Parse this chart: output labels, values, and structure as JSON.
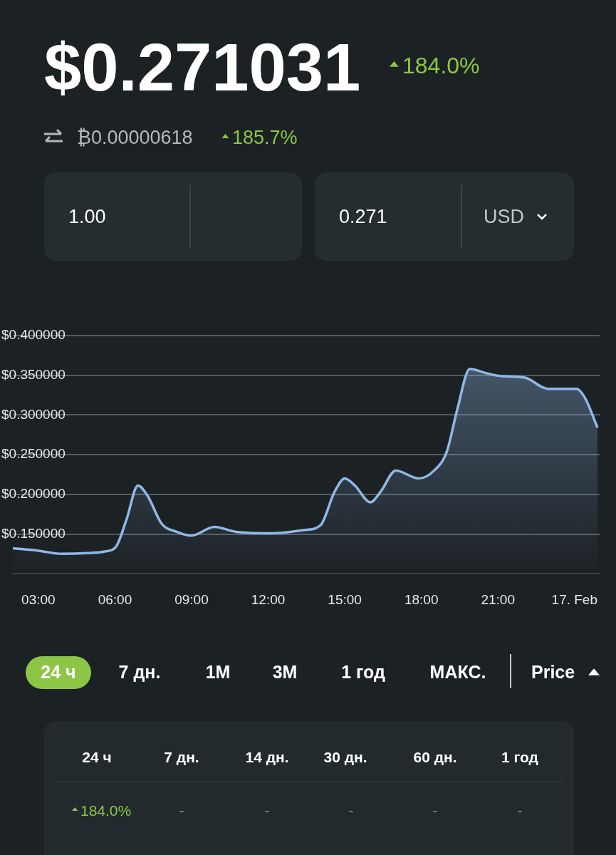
{
  "chart_data": {
    "type": "area",
    "title": "$0.271031",
    "x": [
      2.0,
      3.0,
      3.9,
      4.93,
      5.6,
      6.04,
      6.45,
      6.9,
      7.28,
      7.83,
      8.4,
      9.0,
      9.9,
      10.7,
      12.1,
      13.4,
      14.05,
      14.6,
      15.0,
      15.4,
      16.0,
      16.4,
      17.0,
      17.9,
      18.5,
      19.0,
      19.4,
      19.9,
      20.5,
      21.1,
      22.06,
      22.95,
      24.08,
      24.4,
      24.9
    ],
    "values": [
      0.132,
      0.129,
      0.125,
      0.126,
      0.128,
      0.134,
      0.168,
      0.211,
      0.198,
      0.163,
      0.153,
      0.148,
      0.159,
      0.153,
      0.151,
      0.155,
      0.161,
      0.203,
      0.22,
      0.211,
      0.19,
      0.203,
      0.23,
      0.22,
      0.23,
      0.254,
      0.306,
      0.358,
      0.353,
      0.349,
      0.347,
      0.333,
      0.333,
      0.322,
      0.284
    ],
    "color": "#8fb8e6",
    "xlim": [
      2,
      25
    ],
    "xticks": [
      {
        "value": 3,
        "label": "03:00"
      },
      {
        "value": 6,
        "label": "06:00"
      },
      {
        "value": 9,
        "label": "09:00"
      },
      {
        "value": 12,
        "label": "12:00"
      },
      {
        "value": 15,
        "label": "15:00"
      },
      {
        "value": 18,
        "label": "18:00"
      },
      {
        "value": 21,
        "label": "21:00"
      },
      {
        "value": 24,
        "label": "17. Feb"
      }
    ],
    "ylim": [
      0.1,
      0.4
    ],
    "yticks": [
      {
        "value": 0.15,
        "label": "$0.150000"
      },
      {
        "value": 0.2,
        "label": "$0.200000"
      },
      {
        "value": 0.25,
        "label": "$0.250000"
      },
      {
        "value": 0.3,
        "label": "$0.300000"
      },
      {
        "value": 0.35,
        "label": "$0.350000"
      },
      {
        "value": 0.4,
        "label": "$0.400000"
      }
    ],
    "grid": "y",
    "marker": "none",
    "annotations": [
      "184.0%",
      "₿0.00000618",
      "185.7%",
      "1.00",
      "0.271",
      "USD",
      "24 ч",
      "7 дн.",
      "1M",
      "3M",
      "1 год",
      "МАКС.",
      "Price",
      "24 ч",
      "7 дн.",
      "14 дн.",
      "30 дн.",
      "60 дн.",
      "1 год",
      "184.0%",
      "-",
      "-",
      "-",
      "-",
      "-"
    ]
  }
}
